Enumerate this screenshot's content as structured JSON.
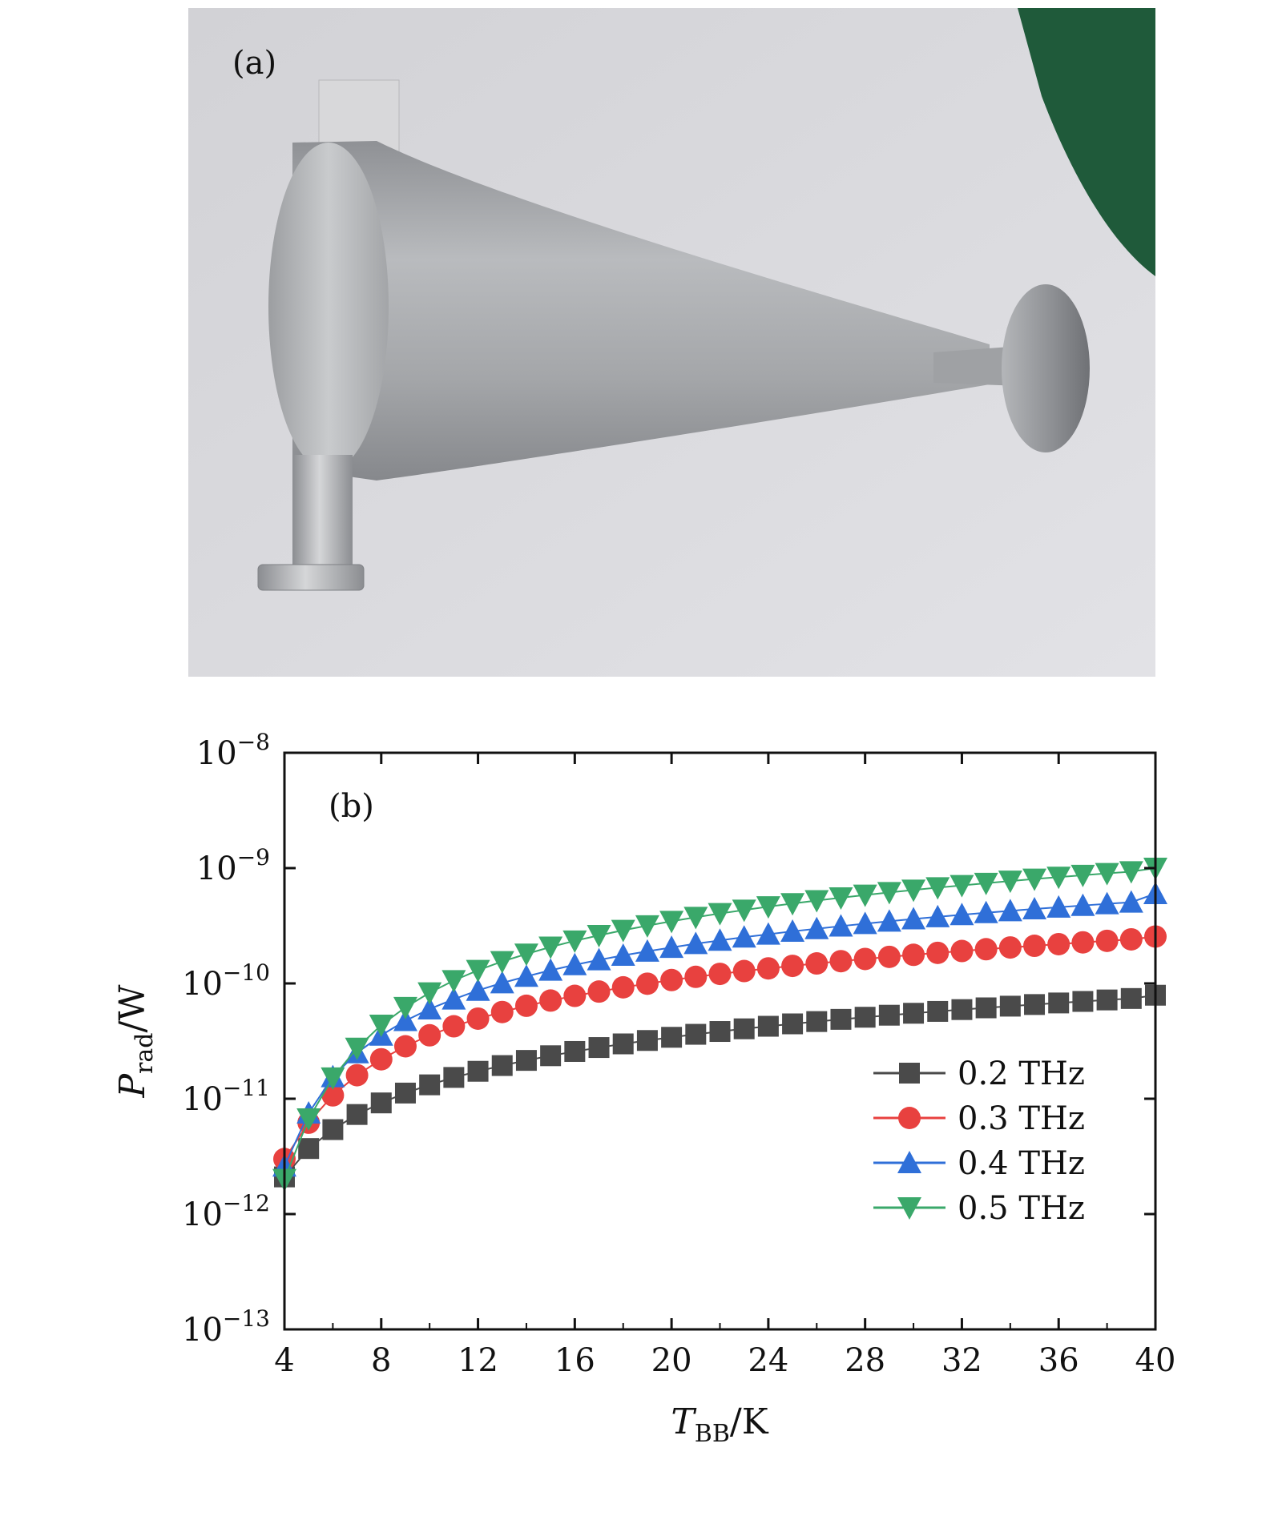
{
  "photo": {
    "label": "(a)",
    "description_colors": {
      "background": "#dcdcde",
      "metal": "#a9abae",
      "cloth": "#1f5a3a"
    }
  },
  "chart_data": {
    "type": "scatter",
    "panel_label": "(b)",
    "xlabel_main": "T",
    "xlabel_sub": "BB",
    "xlabel_unit": "/K",
    "ylabel_main": "P",
    "ylabel_sub": "rad",
    "ylabel_unit": "/W",
    "xlim": [
      4,
      40
    ],
    "ylim": [
      1e-13,
      1e-08
    ],
    "yscale": "log",
    "xticks": [
      4,
      8,
      12,
      16,
      20,
      24,
      28,
      32,
      36,
      40
    ],
    "yticks": [
      {
        "mantissa": "10",
        "exp": "−13",
        "value": 1e-13
      },
      {
        "mantissa": "10",
        "exp": "−12",
        "value": 1e-12
      },
      {
        "mantissa": "10",
        "exp": "−11",
        "value": 1e-11
      },
      {
        "mantissa": "10",
        "exp": "−10",
        "value": 1e-10
      },
      {
        "mantissa": "10",
        "exp": "−9",
        "value": 1e-09
      },
      {
        "mantissa": "10",
        "exp": "−8",
        "value": 1e-08
      }
    ],
    "legend_position": "bottom-right",
    "x": [
      4,
      5,
      6,
      7,
      8,
      9,
      10,
      11,
      12,
      13,
      14,
      15,
      16,
      17,
      18,
      19,
      20,
      21,
      22,
      23,
      24,
      25,
      26,
      27,
      28,
      29,
      30,
      31,
      32,
      33,
      34,
      35,
      36,
      37,
      38,
      39,
      40
    ],
    "series": [
      {
        "name": "0.2 THz",
        "marker": "square",
        "color": "#4a4a4a",
        "values": [
          2.1e-12,
          3.7e-12,
          5.4e-12,
          7.3e-12,
          9.2e-12,
          1.12e-11,
          1.32e-11,
          1.53e-11,
          1.73e-11,
          1.94e-11,
          2.15e-11,
          2.36e-11,
          2.57e-11,
          2.78e-11,
          2.99e-11,
          3.2e-11,
          3.41e-11,
          3.62e-11,
          3.83e-11,
          4.04e-11,
          4.25e-11,
          4.46e-11,
          4.67e-11,
          4.88e-11,
          5.09e-11,
          5.3e-11,
          5.51e-11,
          5.72e-11,
          5.93e-11,
          6.14e-11,
          6.35e-11,
          6.56e-11,
          6.77e-11,
          6.98e-11,
          7.19e-11,
          7.4e-11,
          7.9e-11
        ]
      },
      {
        "name": "0.3 THz",
        "marker": "circle",
        "color": "#e8413f",
        "values": [
          3e-12,
          6.2e-12,
          1.07e-11,
          1.6e-11,
          2.2e-11,
          2.85e-11,
          3.55e-11,
          4.25e-11,
          4.95e-11,
          5.65e-11,
          6.4e-11,
          7.1e-11,
          7.8e-11,
          8.5e-11,
          9.25e-11,
          9.95e-11,
          1.07e-10,
          1.14e-10,
          1.21e-10,
          1.28e-10,
          1.35e-10,
          1.42e-10,
          1.49e-10,
          1.56e-10,
          1.63e-10,
          1.7e-10,
          1.77e-10,
          1.84e-10,
          1.91e-10,
          1.98e-10,
          2.05e-10,
          2.12e-10,
          2.19e-10,
          2.27e-10,
          2.34e-10,
          2.41e-10,
          2.55e-10
        ]
      },
      {
        "name": "0.4 THz",
        "marker": "triangle-up",
        "color": "#2f6fd8",
        "values": [
          2.6e-12,
          7.5e-12,
          1.55e-11,
          2.5e-11,
          3.55e-11,
          4.75e-11,
          6e-11,
          7.3e-11,
          8.7e-11,
          1.01e-10,
          1.15e-10,
          1.3e-10,
          1.45e-10,
          1.6e-10,
          1.75e-10,
          1.9e-10,
          2.05e-10,
          2.21e-10,
          2.36e-10,
          2.52e-10,
          2.67e-10,
          2.83e-10,
          2.98e-10,
          3.14e-10,
          3.3e-10,
          3.46e-10,
          3.62e-10,
          3.78e-10,
          3.94e-10,
          4.1e-10,
          4.26e-10,
          4.42e-10,
          4.58e-10,
          4.74e-10,
          4.9e-10,
          5.06e-10,
          6e-10
        ]
      },
      {
        "name": "0.5 THz",
        "marker": "triangle-down",
        "color": "#3aa86a",
        "values": [
          2e-12,
          6.7e-12,
          1.52e-11,
          2.75e-11,
          4.35e-11,
          6.2e-11,
          8.3e-11,
          1.06e-10,
          1.3e-10,
          1.55e-10,
          1.8e-10,
          2.07e-10,
          2.34e-10,
          2.61e-10,
          2.89e-10,
          3.17e-10,
          3.46e-10,
          3.75e-10,
          4.04e-10,
          4.33e-10,
          4.63e-10,
          4.93e-10,
          5.23e-10,
          5.53e-10,
          5.84e-10,
          6.15e-10,
          6.46e-10,
          6.77e-10,
          7.08e-10,
          7.4e-10,
          7.72e-10,
          8.04e-10,
          8.36e-10,
          8.68e-10,
          9e-10,
          9.32e-10,
          1e-09
        ]
      }
    ]
  }
}
